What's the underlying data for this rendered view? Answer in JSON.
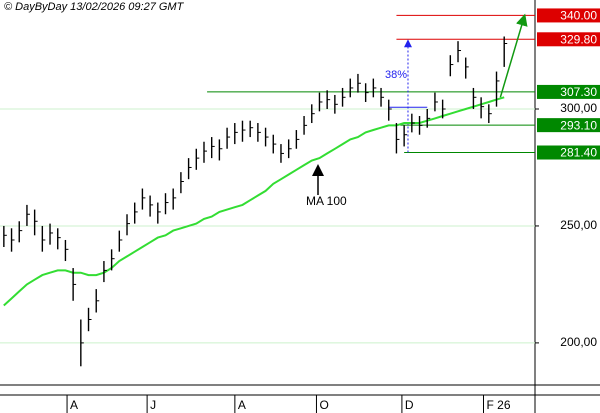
{
  "chart_data": {
    "type": "ohlc",
    "title": "© DayByDay 13/02/2026  09:27 GMT",
    "xlim": [
      -0.5,
      69
    ],
    "xticks": [
      {
        "value": 8.6,
        "label": "A"
      },
      {
        "value": 19,
        "label": "J"
      },
      {
        "value": 30.4,
        "label": "A"
      },
      {
        "value": 41,
        "label": "O"
      },
      {
        "value": 52.1,
        "label": "D"
      },
      {
        "value": 62.7,
        "label": "F 26"
      }
    ],
    "ylim": [
      182,
      346.6
    ],
    "yticks": [
      {
        "value": 200,
        "label": "200,00"
      },
      {
        "value": 250,
        "label": "250,00"
      },
      {
        "value": 300,
        "label": "300,00"
      }
    ],
    "grid": true,
    "color": "#000000",
    "close": [
      246,
      244,
      248,
      255,
      252,
      244,
      247,
      245,
      240,
      225,
      200,
      210,
      218,
      231,
      236,
      244,
      251,
      256,
      262,
      259,
      256,
      260,
      262,
      269,
      275,
      279,
      282,
      284,
      283,
      288,
      290,
      291,
      292,
      290,
      288,
      285,
      281,
      283,
      287,
      293,
      298,
      303,
      304,
      302,
      305,
      309,
      311,
      307,
      309,
      305,
      300,
      287,
      289,
      294,
      293,
      296,
      303,
      300,
      319,
      325,
      318,
      305,
      301,
      298,
      312,
      328
    ],
    "high": [
      250,
      249,
      252,
      259,
      257,
      250,
      251,
      249,
      244,
      232,
      210,
      215,
      223,
      235,
      240,
      248,
      255,
      260,
      266,
      263,
      260,
      264,
      266,
      273,
      279,
      283,
      286,
      288,
      287,
      292,
      294,
      295,
      295,
      294,
      292,
      289,
      285,
      287,
      291,
      297,
      302,
      307,
      308,
      306,
      309,
      313,
      315,
      311,
      313,
      309,
      304,
      294,
      293,
      298,
      297,
      300,
      307,
      304,
      323,
      329,
      322,
      309,
      305,
      302,
      316,
      331
    ],
    "low": [
      241,
      239,
      243,
      250,
      246,
      239,
      242,
      240,
      235,
      218,
      190,
      205,
      213,
      226,
      231,
      239,
      246,
      251,
      257,
      254,
      251,
      255,
      257,
      264,
      270,
      274,
      277,
      279,
      278,
      283,
      285,
      286,
      288,
      286,
      284,
      281,
      277,
      279,
      283,
      289,
      294,
      299,
      300,
      298,
      301,
      305,
      307,
      303,
      305,
      301,
      295,
      281,
      284,
      290,
      289,
      292,
      299,
      296,
      314,
      320,
      313,
      300,
      296,
      294,
      301,
      318
    ],
    "ma": {
      "name": "MA 100",
      "color": "#33dd33",
      "values": [
        216,
        219,
        222,
        225,
        227,
        229,
        230,
        231,
        231,
        230,
        230,
        229,
        229,
        230,
        232,
        235,
        237,
        239,
        241,
        243,
        245,
        246,
        248,
        249,
        250,
        251,
        253,
        254,
        256,
        257,
        258,
        259,
        261,
        263,
        265,
        268,
        270,
        272,
        274,
        276,
        278,
        279,
        281,
        283,
        285,
        287,
        288,
        290,
        291,
        292,
        293,
        293,
        294,
        294,
        294,
        295,
        296,
        297,
        298,
        299,
        300,
        301,
        302,
        303,
        304,
        305
      ]
    },
    "levels": [
      {
        "value": 340,
        "label": "340.00",
        "color": "#dd0000",
        "from": 51
      },
      {
        "value": 329.8,
        "label": "329.80",
        "color": "#dd0000",
        "from": 51
      },
      {
        "value": 307.3,
        "label": "307.30",
        "color": "#008800",
        "from": 26.4
      },
      {
        "value": 293.1,
        "label": "293.10",
        "color": "#008800",
        "from": 51.5
      },
      {
        "value": 281.4,
        "label": "281.40",
        "color": "#008800",
        "from": 52
      }
    ],
    "annotations": [
      "MA 100",
      "38%"
    ]
  }
}
